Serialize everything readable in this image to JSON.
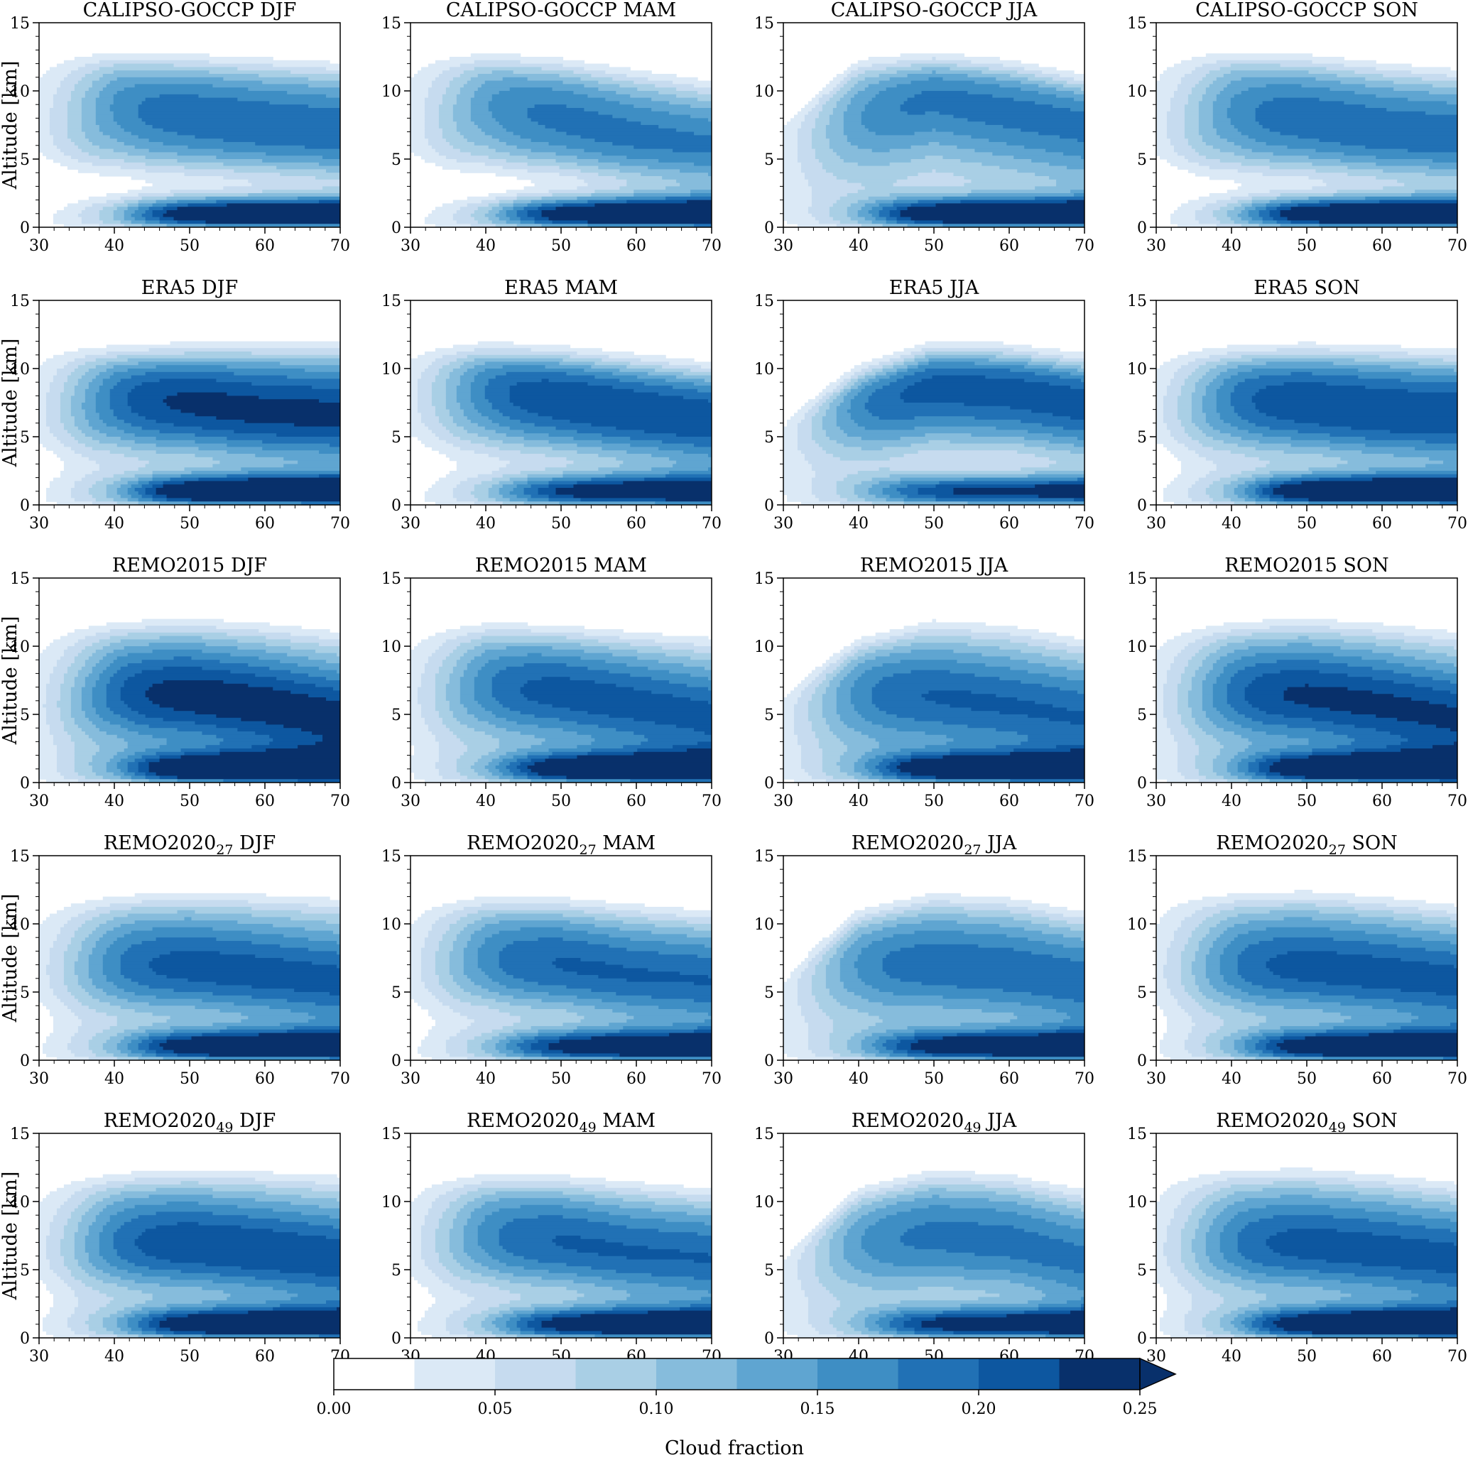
{
  "chart_data": {
    "type": "contourf",
    "layout": {
      "rows": 5,
      "cols": 4
    },
    "shared": {
      "ylabel": "Altitude [km]",
      "xlabel": "",
      "xlim": [
        30,
        70
      ],
      "ylim": [
        0,
        15
      ],
      "xticks": [
        30,
        40,
        50,
        60,
        70
      ],
      "yticks": [
        0,
        5,
        10,
        15
      ],
      "grid": false
    },
    "rows": [
      {
        "name": "CALIPSO-GOCCP",
        "sub": ""
      },
      {
        "name": "ERA5",
        "sub": ""
      },
      {
        "name": "REMO2015",
        "sub": ""
      },
      {
        "name": "REMO2020",
        "sub": "27"
      },
      {
        "name": "REMO2020",
        "sub": "49"
      }
    ],
    "seasons": [
      "DJF",
      "MAM",
      "JJA",
      "SON"
    ],
    "panels": [
      {
        "row": 0,
        "season": "DJF",
        "top": [
          12.3,
          12.3,
          12.1,
          11.9,
          11.6
        ],
        "upper_core": [
          7.3,
          8.8,
          8.2,
          7.5,
          7.0
        ],
        "upper_max": 0.16,
        "low_max": 0.26,
        "dry_gap": [
          3.2,
          4.5,
          4.9,
          5.0,
          4.4
        ]
      },
      {
        "row": 0,
        "season": "MAM",
        "top": [
          12.3,
          12.2,
          11.8,
          11.1,
          10.3
        ],
        "upper_core": [
          7.5,
          9.0,
          8.0,
          6.5,
          5.5
        ],
        "upper_max": 0.15,
        "low_max": 0.25,
        "dry_gap": [
          3.0,
          4.6,
          5.0,
          4.5,
          4.0
        ]
      },
      {
        "row": 0,
        "season": "JJA",
        "top": [
          7.8,
          11.8,
          12.1,
          11.6,
          10.5
        ],
        "upper_core": [
          6.0,
          8.0,
          9.5,
          8.5,
          7.5
        ],
        "upper_max": 0.15,
        "low_max": 0.27,
        "dry_gap": [
          0.0,
          0.0,
          0.0,
          0.0,
          0.0
        ]
      },
      {
        "row": 0,
        "season": "SON",
        "top": [
          12.4,
          12.4,
          12.1,
          11.6,
          11.1
        ],
        "upper_core": [
          7.0,
          8.5,
          8.0,
          7.0,
          6.5
        ],
        "upper_max": 0.16,
        "low_max": 0.26,
        "dry_gap": [
          3.0,
          4.0,
          4.6,
          4.8,
          4.2
        ]
      },
      {
        "row": 1,
        "season": "DJF",
        "top": [
          11.2,
          11.0,
          11.2,
          11.4,
          11.5
        ],
        "upper_core": [
          6.5,
          7.8,
          7.5,
          6.8,
          6.5
        ],
        "upper_max": 0.2,
        "low_max": 0.26,
        "dry_gap": [
          2.0,
          3.0,
          3.3,
          3.0,
          2.6
        ]
      },
      {
        "row": 1,
        "season": "MAM",
        "top": [
          11.2,
          11.2,
          10.9,
          10.4,
          9.8
        ],
        "upper_core": [
          8.0,
          8.5,
          7.8,
          6.8,
          6.0
        ],
        "upper_max": 0.19,
        "low_max": 0.21,
        "dry_gap": [
          2.0,
          3.0,
          3.5,
          3.3,
          2.8
        ]
      },
      {
        "row": 1,
        "season": "JJA",
        "top": [
          6.0,
          9.5,
          11.2,
          11.0,
          10.3
        ],
        "upper_core": [
          6.0,
          7.5,
          8.8,
          8.5,
          7.5
        ],
        "upper_max": 0.18,
        "low_max": 0.2,
        "dry_gap": [
          0.0,
          1.5,
          2.5,
          3.0,
          2.5
        ]
      },
      {
        "row": 1,
        "season": "SON",
        "top": [
          11.0,
          11.0,
          11.2,
          11.1,
          10.8
        ],
        "upper_core": [
          6.5,
          7.8,
          7.5,
          6.8,
          6.5
        ],
        "upper_max": 0.19,
        "low_max": 0.26,
        "dry_gap": [
          2.0,
          2.8,
          3.2,
          3.0,
          2.6
        ]
      },
      {
        "row": 2,
        "season": "DJF",
        "top": [
          11.0,
          11.3,
          11.6,
          11.3,
          10.8
        ],
        "upper_core": [
          5.0,
          6.5,
          6.3,
          5.5,
          4.5
        ],
        "upper_max": 0.21,
        "low_max": 0.24,
        "dry_gap": [
          0.5,
          1.2,
          1.5,
          1.0,
          0.5
        ]
      },
      {
        "row": 2,
        "season": "MAM",
        "top": [
          11.0,
          11.2,
          11.0,
          10.6,
          10.3
        ],
        "upper_core": [
          6.0,
          7.0,
          6.5,
          5.5,
          4.5
        ],
        "upper_max": 0.18,
        "low_max": 0.23,
        "dry_gap": [
          0.5,
          1.2,
          1.5,
          1.2,
          0.8
        ]
      },
      {
        "row": 2,
        "season": "JJA",
        "top": [
          6.5,
          10.0,
          11.5,
          11.2,
          10.2
        ],
        "upper_core": [
          5.0,
          6.5,
          6.3,
          5.5,
          4.5
        ],
        "upper_max": 0.17,
        "low_max": 0.23,
        "dry_gap": [
          0.0,
          0.0,
          0.5,
          0.8,
          0.5
        ]
      },
      {
        "row": 2,
        "season": "SON",
        "top": [
          11.0,
          11.3,
          11.6,
          11.3,
          10.8
        ],
        "upper_core": [
          5.5,
          6.5,
          6.3,
          5.5,
          4.5
        ],
        "upper_max": 0.2,
        "low_max": 0.23,
        "dry_gap": [
          0.5,
          1.2,
          1.5,
          1.0,
          0.5
        ]
      },
      {
        "row": 3,
        "season": "DJF",
        "top": [
          11.3,
          11.6,
          11.9,
          11.8,
          11.6
        ],
        "upper_core": [
          6.0,
          7.0,
          6.8,
          6.2,
          5.5
        ],
        "upper_max": 0.18,
        "low_max": 0.23,
        "dry_gap": [
          1.5,
          2.5,
          3.0,
          2.6,
          2.0
        ]
      },
      {
        "row": 3,
        "season": "MAM",
        "top": [
          11.3,
          11.5,
          11.4,
          11.0,
          10.5
        ],
        "upper_core": [
          6.5,
          7.5,
          7.0,
          6.0,
          5.5
        ],
        "upper_max": 0.17,
        "low_max": 0.21,
        "dry_gap": [
          1.5,
          2.8,
          3.3,
          2.8,
          2.2
        ]
      },
      {
        "row": 3,
        "season": "JJA",
        "top": [
          6.0,
          10.5,
          11.8,
          11.5,
          10.5
        ],
        "upper_core": [
          5.5,
          7.0,
          7.0,
          6.5,
          5.5
        ],
        "upper_max": 0.16,
        "low_max": 0.22,
        "dry_gap": [
          0.0,
          0.5,
          1.2,
          1.5,
          1.0
        ]
      },
      {
        "row": 3,
        "season": "SON",
        "top": [
          11.8,
          11.8,
          12.0,
          11.6,
          11.0
        ],
        "upper_core": [
          6.0,
          7.0,
          6.8,
          6.2,
          5.5
        ],
        "upper_max": 0.18,
        "low_max": 0.23,
        "dry_gap": [
          1.2,
          2.0,
          2.5,
          2.2,
          1.6
        ]
      },
      {
        "row": 4,
        "season": "DJF",
        "top": [
          11.3,
          11.6,
          11.9,
          11.8,
          11.6
        ],
        "upper_core": [
          6.0,
          7.0,
          6.8,
          6.2,
          5.5
        ],
        "upper_max": 0.19,
        "low_max": 0.23,
        "dry_gap": [
          1.5,
          2.5,
          3.0,
          2.6,
          2.0
        ]
      },
      {
        "row": 4,
        "season": "MAM",
        "top": [
          11.3,
          11.5,
          11.4,
          11.0,
          10.5
        ],
        "upper_core": [
          6.5,
          7.5,
          7.0,
          6.0,
          5.5
        ],
        "upper_max": 0.17,
        "low_max": 0.22,
        "dry_gap": [
          1.5,
          2.8,
          3.3,
          2.8,
          2.2
        ]
      },
      {
        "row": 4,
        "season": "JJA",
        "top": [
          6.0,
          10.5,
          11.8,
          11.5,
          10.5
        ],
        "upper_core": [
          5.5,
          7.0,
          7.5,
          7.0,
          5.5
        ],
        "upper_max": 0.15,
        "low_max": 0.21,
        "dry_gap": [
          0.0,
          0.5,
          1.2,
          1.5,
          1.0
        ]
      },
      {
        "row": 4,
        "season": "SON",
        "top": [
          11.8,
          11.9,
          12.0,
          11.6,
          11.0
        ],
        "upper_core": [
          6.0,
          7.0,
          6.8,
          6.2,
          5.5
        ],
        "upper_max": 0.18,
        "low_max": 0.24,
        "dry_gap": [
          1.2,
          2.0,
          2.5,
          2.2,
          1.6
        ]
      }
    ],
    "colorbar": {
      "label": "Cloud fraction",
      "levels": [
        0.0,
        0.025,
        0.05,
        0.075,
        0.1,
        0.125,
        0.15,
        0.175,
        0.2,
        0.225,
        0.25
      ],
      "ticks": [
        "0.00",
        "0.05",
        "0.10",
        "0.15",
        "0.20",
        "0.25"
      ],
      "extend": "max",
      "colors": [
        "#ffffff",
        "#dbe9f6",
        "#c6dbef",
        "#a9cfe5",
        "#86bcdc",
        "#5fa5d1",
        "#3e8ec4",
        "#2171b5",
        "#0d57a0",
        "#08306b"
      ]
    }
  }
}
